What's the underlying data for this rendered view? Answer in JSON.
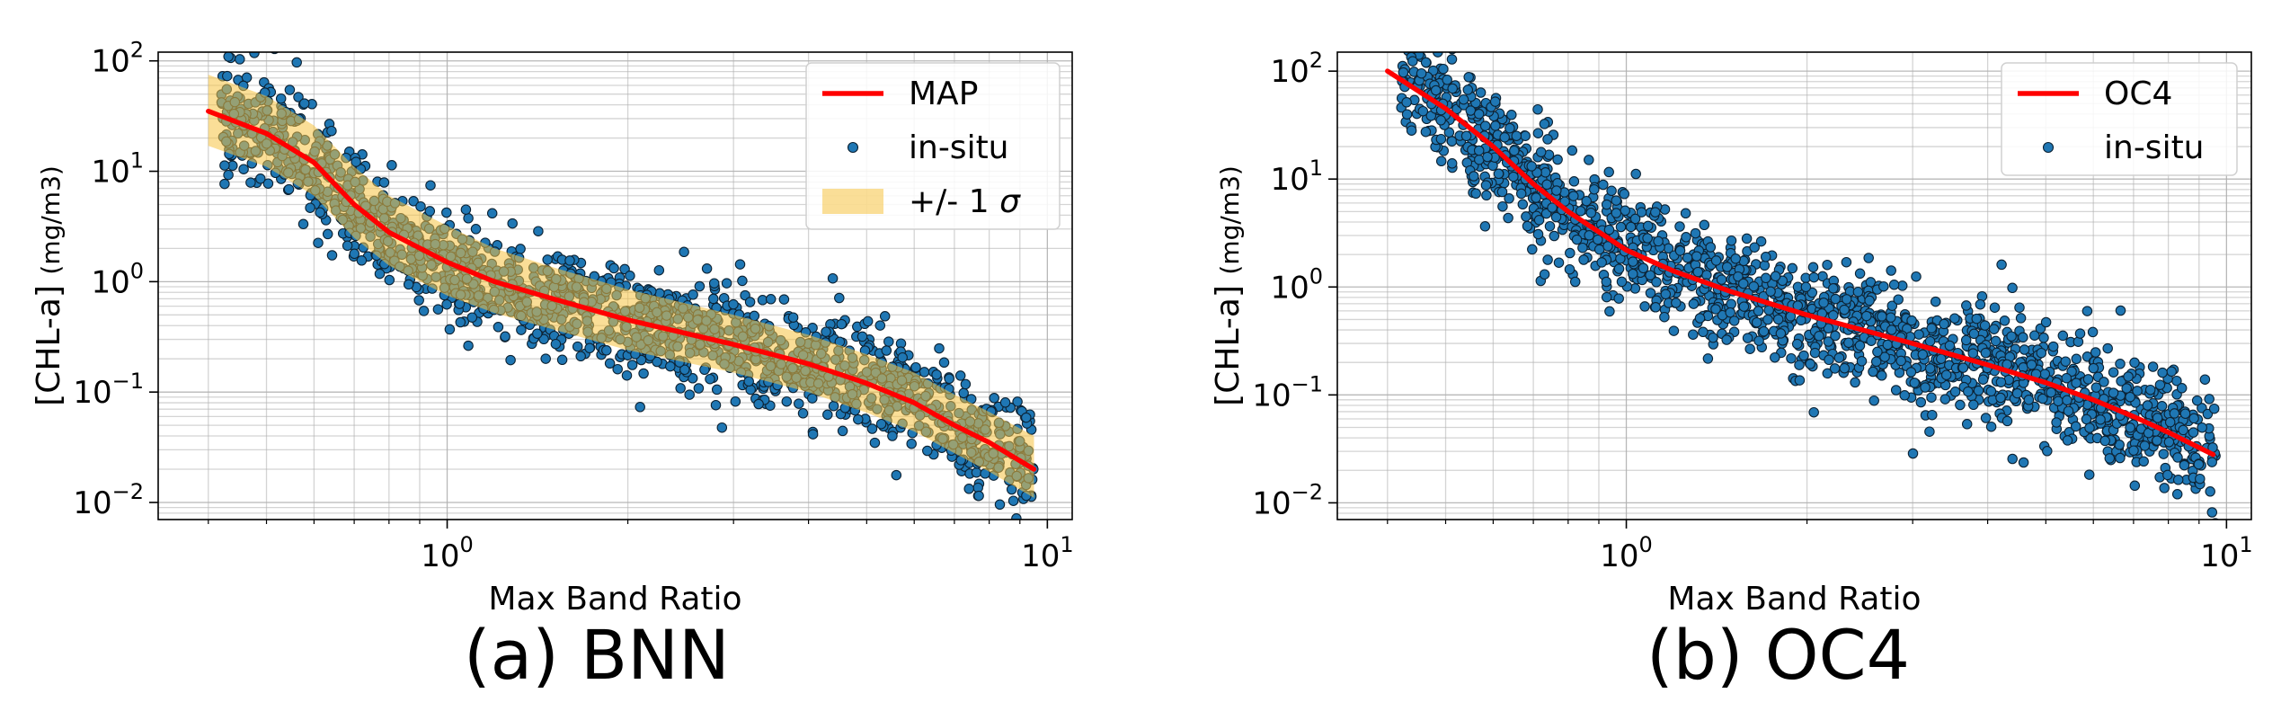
{
  "chart_data": [
    {
      "type": "scatter",
      "panel_caption": "(a) BNN",
      "xlabel": "Max Band Ratio",
      "ylabel": "[CHL-a]",
      "ylabel_unit": "(mg/m3)",
      "xscale": "log",
      "yscale": "log",
      "xlim": [
        0.33,
        11.0
      ],
      "ylim": [
        0.007,
        120
      ],
      "x_ticks": [
        {
          "value": 1,
          "base": "10",
          "exp": "0"
        },
        {
          "value": 10,
          "base": "10",
          "exp": "1"
        }
      ],
      "y_ticks": [
        {
          "value": 0.01,
          "base": "10",
          "exp": "−2"
        },
        {
          "value": 0.1,
          "base": "10",
          "exp": "−1"
        },
        {
          "value": 1,
          "base": "10",
          "exp": "0"
        },
        {
          "value": 10,
          "base": "10",
          "exp": "1"
        },
        {
          "value": 100,
          "base": "10",
          "exp": "2"
        }
      ],
      "grid": true,
      "legend_position": "top-right",
      "legend": [
        {
          "label": "MAP",
          "kind": "line",
          "color": "#ff0000"
        },
        {
          "label": "in-situ",
          "kind": "marker",
          "color": "#1f77b4"
        },
        {
          "label": "+/- 1 ",
          "sigma": "σ",
          "kind": "band",
          "color": "#f5c242"
        }
      ],
      "series": [
        {
          "name": "MAP",
          "kind": "line",
          "x": [
            0.4,
            0.5,
            0.6,
            0.7,
            0.8,
            1.0,
            1.2,
            1.5,
            2.0,
            3.0,
            4.0,
            5.0,
            6.0,
            7.0,
            8.0,
            9.5
          ],
          "y": [
            35,
            22,
            12,
            5,
            2.8,
            1.5,
            1.0,
            0.7,
            0.45,
            0.27,
            0.18,
            0.12,
            0.08,
            0.05,
            0.035,
            0.02
          ]
        },
        {
          "name": "+/- 1 σ",
          "kind": "band",
          "x": [
            0.4,
            0.5,
            0.6,
            0.7,
            0.8,
            1.0,
            1.2,
            1.5,
            2.0,
            3.0,
            4.0,
            5.0,
            6.0,
            7.0,
            8.0,
            9.5
          ],
          "y_low": [
            17,
            11,
            6,
            2.5,
            1.4,
            0.75,
            0.52,
            0.37,
            0.24,
            0.15,
            0.1,
            0.065,
            0.044,
            0.028,
            0.019,
            0.011
          ],
          "y_high": [
            75,
            48,
            26,
            11,
            6,
            3.2,
            2.0,
            1.35,
            0.85,
            0.5,
            0.33,
            0.22,
            0.15,
            0.095,
            0.066,
            0.04
          ]
        },
        {
          "name": "in-situ",
          "kind": "scatter",
          "n": 1600,
          "seed": 7,
          "scatter_sigma_dex": 0.24,
          "x_min": 0.42,
          "x_max": 9.6
        }
      ]
    },
    {
      "type": "scatter",
      "panel_caption": "(b) OC4",
      "xlabel": "Max Band Ratio",
      "ylabel": "[CHL-a]",
      "ylabel_unit": "(mg/m3)",
      "xscale": "log",
      "yscale": "log",
      "xlim": [
        0.33,
        11.0
      ],
      "ylim": [
        0.007,
        150
      ],
      "x_ticks": [
        {
          "value": 1,
          "base": "10",
          "exp": "0"
        },
        {
          "value": 10,
          "base": "10",
          "exp": "1"
        }
      ],
      "y_ticks": [
        {
          "value": 0.01,
          "base": "10",
          "exp": "−2"
        },
        {
          "value": 0.1,
          "base": "10",
          "exp": "−1"
        },
        {
          "value": 1,
          "base": "10",
          "exp": "0"
        },
        {
          "value": 10,
          "base": "10",
          "exp": "1"
        },
        {
          "value": 100,
          "base": "10",
          "exp": "2"
        }
      ],
      "grid": true,
      "legend_position": "top-right",
      "legend": [
        {
          "label": "OC4",
          "kind": "line",
          "color": "#ff0000"
        },
        {
          "label": "in-situ",
          "kind": "marker",
          "color": "#1f77b4"
        }
      ],
      "series": [
        {
          "name": "OC4",
          "kind": "line",
          "x": [
            0.4,
            0.5,
            0.6,
            0.7,
            0.8,
            1.0,
            1.2,
            1.5,
            2.0,
            3.0,
            4.0,
            5.0,
            6.0,
            7.0,
            8.0,
            9.5
          ],
          "y": [
            100,
            45,
            20,
            9,
            5,
            2.2,
            1.4,
            0.9,
            0.55,
            0.3,
            0.19,
            0.13,
            0.09,
            0.063,
            0.045,
            0.028
          ]
        },
        {
          "name": "in-situ",
          "kind": "scatter",
          "n": 1600,
          "seed": 11,
          "scatter_sigma_dex": 0.27,
          "x_min": 0.42,
          "x_max": 9.6
        }
      ]
    }
  ]
}
